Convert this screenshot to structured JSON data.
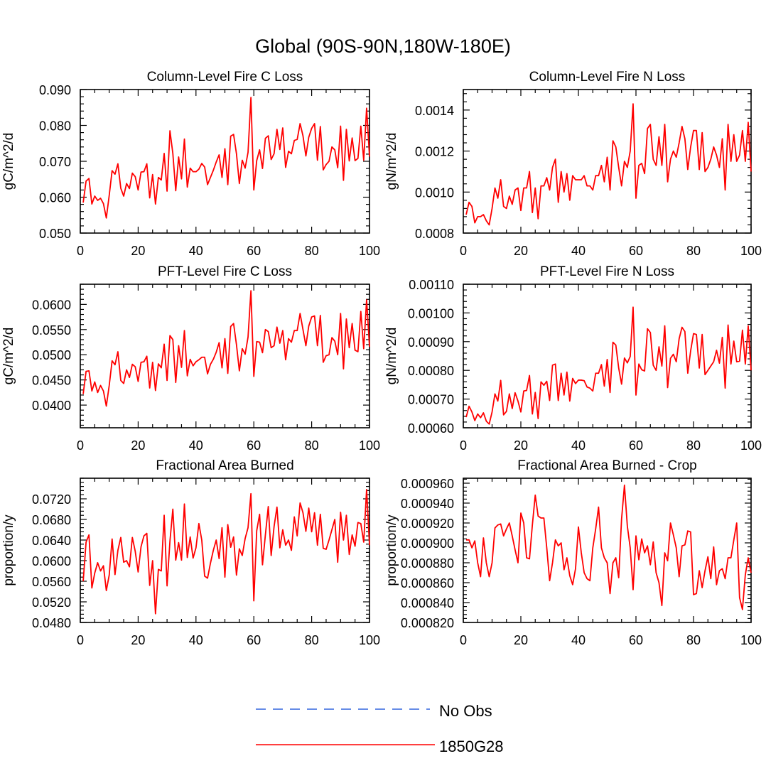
{
  "title": "Global (90S-90N,180W-180E)",
  "colors": {
    "series": "#ff0000",
    "obs": "#3366dd",
    "axes": "#000000"
  },
  "legend": {
    "entries": [
      {
        "label": "No Obs",
        "style": "dashed",
        "color": "#3366dd"
      },
      {
        "label": "1850G28",
        "style": "solid",
        "color": "#ff0000"
      }
    ]
  },
  "chart_data": [
    {
      "type": "line",
      "title": "Column-Level Fire C Loss",
      "xlabel": "",
      "ylabel": "gC/m^2/d",
      "xlim": [
        0,
        100
      ],
      "ylim": [
        0.05,
        0.09
      ],
      "xticks": [
        "0",
        "20",
        "40",
        "60",
        "80",
        "100"
      ],
      "yticks": [
        {
          "v": 0.05,
          "label": "0.050"
        },
        {
          "v": 0.06,
          "label": "0.060"
        },
        {
          "v": 0.07,
          "label": "0.070"
        },
        {
          "v": 0.08,
          "label": "0.080"
        },
        {
          "v": 0.09,
          "label": "0.090"
        }
      ],
      "series": [
        {
          "name": "1850G28",
          "x_start": 1,
          "values": [
            0.0585,
            0.0645,
            0.0652,
            0.0581,
            0.0603,
            0.0591,
            0.0597,
            0.0582,
            0.0542,
            0.0605,
            0.0674,
            0.0664,
            0.0693,
            0.0625,
            0.0603,
            0.0638,
            0.0624,
            0.0667,
            0.0657,
            0.062,
            0.067,
            0.0671,
            0.0693,
            0.0598,
            0.0663,
            0.0581,
            0.0655,
            0.0648,
            0.0722,
            0.0617,
            0.0785,
            0.0722,
            0.0618,
            0.0712,
            0.0651,
            0.0762,
            0.0628,
            0.0681,
            0.0671,
            0.0671,
            0.0678,
            0.0694,
            0.0684,
            0.0635,
            0.0655,
            0.0675,
            0.0698,
            0.0718,
            0.0655,
            0.0735,
            0.0635,
            0.077,
            0.0775,
            0.0721,
            0.0638,
            0.0703,
            0.0681,
            0.0725,
            0.0878,
            0.062,
            0.0702,
            0.0732,
            0.068,
            0.0764,
            0.0771,
            0.0705,
            0.0721,
            0.0789,
            0.0733,
            0.0793,
            0.0683,
            0.0728,
            0.0721,
            0.0758,
            0.0761,
            0.0805,
            0.0771,
            0.0715,
            0.0767,
            0.0792,
            0.0805,
            0.0703,
            0.0797,
            0.0676,
            0.0691,
            0.07,
            0.074,
            0.0732,
            0.0682,
            0.0798,
            0.0647,
            0.0789,
            0.0701,
            0.0765,
            0.0702,
            0.0708,
            0.0798,
            0.0703,
            0.0848,
            0.0713
          ]
        }
      ]
    },
    {
      "type": "line",
      "title": "Column-Level Fire N Loss",
      "xlabel": "",
      "ylabel": "gN/m^2/d",
      "xlim": [
        0,
        100
      ],
      "ylim": [
        0.0008,
        0.0015
      ],
      "xticks": [
        "0",
        "20",
        "40",
        "60",
        "80",
        "100"
      ],
      "yticks": [
        {
          "v": 0.0008,
          "label": "0.0008"
        },
        {
          "v": 0.001,
          "label": "0.0010"
        },
        {
          "v": 0.0012,
          "label": "0.0012"
        },
        {
          "v": 0.0014,
          "label": "0.0014"
        }
      ],
      "series": [
        {
          "name": "1850G28",
          "x_start": 1,
          "values": [
            0.00089,
            0.00095,
            0.00093,
            0.00085,
            0.00088,
            0.00088,
            0.00089,
            0.00086,
            0.00084,
            0.00092,
            0.00102,
            0.00097,
            0.00106,
            0.00093,
            0.00092,
            0.00098,
            0.00094,
            0.00101,
            0.00102,
            0.00091,
            0.00102,
            0.00102,
            0.0011,
            0.0009,
            0.00102,
            0.00087,
            0.00103,
            0.00103,
            0.00107,
            0.00101,
            0.00112,
            0.00116,
            0.00095,
            0.0011,
            0.001,
            0.00109,
            0.00096,
            0.00108,
            0.00106,
            0.00106,
            0.00106,
            0.00108,
            0.00103,
            0.00103,
            0.00101,
            0.00108,
            0.00108,
            0.00113,
            0.00105,
            0.00117,
            0.00101,
            0.00125,
            0.00122,
            0.00112,
            0.00103,
            0.00115,
            0.00112,
            0.0012,
            0.00143,
            0.00097,
            0.00113,
            0.00114,
            0.00109,
            0.00131,
            0.00133,
            0.00116,
            0.00113,
            0.00127,
            0.00113,
            0.00133,
            0.00105,
            0.00116,
            0.0012,
            0.00117,
            0.00124,
            0.00132,
            0.00126,
            0.00111,
            0.00122,
            0.0013,
            0.0013,
            0.00111,
            0.00129,
            0.0011,
            0.00112,
            0.00116,
            0.00122,
            0.00118,
            0.00112,
            0.00126,
            0.00101,
            0.00133,
            0.00115,
            0.00128,
            0.00115,
            0.00118,
            0.0013,
            0.00115,
            0.00134,
            0.0011
          ]
        }
      ]
    },
    {
      "type": "line",
      "title": "PFT-Level Fire C Loss",
      "xlabel": "",
      "ylabel": "gC/m^2/d",
      "xlim": [
        0,
        100
      ],
      "ylim": [
        0.0355,
        0.064
      ],
      "xticks": [
        "0",
        "20",
        "40",
        "60",
        "80",
        "100"
      ],
      "yticks": [
        {
          "v": 0.04,
          "label": "0.0400"
        },
        {
          "v": 0.045,
          "label": "0.0450"
        },
        {
          "v": 0.05,
          "label": "0.0500"
        },
        {
          "v": 0.055,
          "label": "0.0550"
        },
        {
          "v": 0.06,
          "label": "0.0600"
        }
      ],
      "series": [
        {
          "name": "1850G28",
          "x_start": 1,
          "values": [
            0.0422,
            0.0467,
            0.0468,
            0.0428,
            0.0446,
            0.0425,
            0.0439,
            0.0428,
            0.0398,
            0.0439,
            0.0488,
            0.048,
            0.0506,
            0.0449,
            0.0443,
            0.047,
            0.0455,
            0.0481,
            0.0476,
            0.0447,
            0.0485,
            0.0486,
            0.0497,
            0.0434,
            0.0485,
            0.0429,
            0.0482,
            0.0474,
            0.0521,
            0.0449,
            0.0538,
            0.053,
            0.0445,
            0.0518,
            0.0475,
            0.0548,
            0.0458,
            0.0491,
            0.0478,
            0.0486,
            0.049,
            0.0495,
            0.0495,
            0.0462,
            0.0481,
            0.0491,
            0.0505,
            0.0524,
            0.0474,
            0.0532,
            0.0463,
            0.0556,
            0.0562,
            0.052,
            0.0468,
            0.0512,
            0.0501,
            0.0535,
            0.0627,
            0.0457,
            0.0526,
            0.0525,
            0.0504,
            0.055,
            0.0546,
            0.0514,
            0.0518,
            0.0555,
            0.0523,
            0.0548,
            0.049,
            0.0532,
            0.0525,
            0.0548,
            0.0548,
            0.0582,
            0.055,
            0.0518,
            0.0557,
            0.0575,
            0.0577,
            0.0518,
            0.0578,
            0.0485,
            0.0498,
            0.05,
            0.0534,
            0.0527,
            0.05,
            0.0582,
            0.0472,
            0.0571,
            0.0514,
            0.0562,
            0.0509,
            0.0506,
            0.0586,
            0.0512,
            0.0609,
            0.0516
          ]
        }
      ]
    },
    {
      "type": "line",
      "title": "PFT-Level Fire N Loss",
      "xlabel": "",
      "ylabel": "gN/m^2/d",
      "xlim": [
        0,
        100
      ],
      "ylim": [
        0.0006,
        0.0011
      ],
      "xticks": [
        "0",
        "20",
        "40",
        "60",
        "80",
        "100"
      ],
      "yticks": [
        {
          "v": 0.0006,
          "label": "0.00060"
        },
        {
          "v": 0.0007,
          "label": "0.00070"
        },
        {
          "v": 0.0008,
          "label": "0.00080"
        },
        {
          "v": 0.0009,
          "label": "0.00090"
        },
        {
          "v": 0.001,
          "label": "0.00100"
        },
        {
          "v": 0.0011,
          "label": "0.00110"
        }
      ],
      "series": [
        {
          "name": "1850G28",
          "x_start": 1,
          "values": [
            0.000637,
            0.000675,
            0.000655,
            0.000625,
            0.000648,
            0.000635,
            0.000652,
            0.000623,
            0.000613,
            0.000655,
            0.000718,
            0.000693,
            0.000765,
            0.000645,
            0.000657,
            0.000718,
            0.000667,
            0.000722,
            0.000693,
            0.000655,
            0.000728,
            0.00073,
            0.000782,
            0.000648,
            0.000723,
            0.000632,
            0.00076,
            0.000748,
            0.000762,
            0.000695,
            0.000818,
            0.000822,
            0.000695,
            0.00079,
            0.000714,
            0.000794,
            0.000693,
            0.000772,
            0.000754,
            0.000766,
            0.000766,
            0.000764,
            0.000742,
            0.000738,
            0.000728,
            0.00079,
            0.00079,
            0.00082,
            0.000745,
            0.000838,
            0.000723,
            0.000898,
            0.000888,
            0.000808,
            0.000752,
            0.000843,
            0.000826,
            0.000848,
            0.00102,
            0.000714,
            0.000822,
            0.000802,
            0.000798,
            0.000945,
            0.000932,
            0.000818,
            0.0008,
            0.000882,
            0.000815,
            0.000955,
            0.00074,
            0.000842,
            0.000856,
            0.00083,
            0.00091,
            0.00095,
            0.000935,
            0.00079,
            0.000868,
            0.000928,
            0.000925,
            0.000808,
            0.000925,
            0.000785,
            0.0008,
            0.000815,
            0.00083,
            0.00087,
            0.000825,
            0.000915,
            0.000738,
            0.000958,
            0.000822,
            0.000902,
            0.00083,
            0.000832,
            0.00094,
            0.000822,
            0.000955,
            0.0008
          ]
        }
      ]
    },
    {
      "type": "line",
      "title": "Fractional Area Burned",
      "xlabel": "",
      "ylabel": "proportion/y",
      "xlim": [
        0,
        100
      ],
      "ylim": [
        0.048,
        0.076
      ],
      "xticks": [
        "0",
        "20",
        "40",
        "60",
        "80",
        "100"
      ],
      "yticks": [
        {
          "v": 0.048,
          "label": "0.0480"
        },
        {
          "v": 0.052,
          "label": "0.0520"
        },
        {
          "v": 0.056,
          "label": "0.0560"
        },
        {
          "v": 0.06,
          "label": "0.0600"
        },
        {
          "v": 0.064,
          "label": "0.0640"
        },
        {
          "v": 0.068,
          "label": "0.0680"
        },
        {
          "v": 0.072,
          "label": "0.0720"
        }
      ],
      "series": [
        {
          "name": "1850G28",
          "x_start": 1,
          "values": [
            0.056,
            0.0636,
            0.065,
            0.0547,
            0.0576,
            0.0596,
            0.058,
            0.059,
            0.0542,
            0.0572,
            0.0642,
            0.0573,
            0.062,
            0.0645,
            0.0597,
            0.06,
            0.0588,
            0.0645,
            0.0618,
            0.0578,
            0.0627,
            0.0648,
            0.0653,
            0.0552,
            0.06,
            0.0497,
            0.0583,
            0.058,
            0.0688,
            0.0551,
            0.0638,
            0.07,
            0.0601,
            0.0635,
            0.0601,
            0.071,
            0.0606,
            0.0646,
            0.0605,
            0.0625,
            0.0672,
            0.064,
            0.057,
            0.0566,
            0.0595,
            0.062,
            0.064,
            0.0604,
            0.0664,
            0.0568,
            0.067,
            0.0626,
            0.0646,
            0.0572,
            0.0623,
            0.061,
            0.0643,
            0.0664,
            0.073,
            0.0522,
            0.0658,
            0.069,
            0.0592,
            0.065,
            0.0705,
            0.061,
            0.0666,
            0.0704,
            0.0625,
            0.066,
            0.063,
            0.064,
            0.062,
            0.0685,
            0.0648,
            0.0712,
            0.0693,
            0.0657,
            0.0702,
            0.0656,
            0.0693,
            0.063,
            0.069,
            0.0624,
            0.0622,
            0.064,
            0.066,
            0.068,
            0.0597,
            0.0694,
            0.064,
            0.0688,
            0.0612,
            0.065,
            0.0628,
            0.0674,
            0.0672,
            0.0636,
            0.0738,
            0.063
          ]
        }
      ]
    },
    {
      "type": "line",
      "title": "Fractional Area Burned - Crop",
      "xlabel": "",
      "ylabel": "proportion/y",
      "xlim": [
        0,
        100
      ],
      "ylim": [
        0.00082,
        0.000965
      ],
      "xticks": [
        "0",
        "20",
        "40",
        "60",
        "80",
        "100"
      ],
      "yticks": [
        {
          "v": 0.00082,
          "label": "0.000820"
        },
        {
          "v": 0.00084,
          "label": "0.000840"
        },
        {
          "v": 0.00086,
          "label": "0.000860"
        },
        {
          "v": 0.00088,
          "label": "0.000880"
        },
        {
          "v": 0.0009,
          "label": "0.000900"
        },
        {
          "v": 0.00092,
          "label": "0.000920"
        },
        {
          "v": 0.00094,
          "label": "0.000940"
        },
        {
          "v": 0.00096,
          "label": "0.000960"
        }
      ],
      "series": [
        {
          "name": "1850G28",
          "x_start": 1,
          "values": [
            0.000903,
            0.000903,
            0.000895,
            0.000902,
            0.00088,
            0.000866,
            0.000905,
            0.00088,
            0.000866,
            0.00088,
            0.000915,
            0.000918,
            0.000919,
            0.000907,
            0.000914,
            0.00092,
            0.000907,
            0.000893,
            0.00088,
            0.00093,
            0.00092,
            0.000885,
            0.000884,
            0.000918,
            0.000948,
            0.000927,
            0.000925,
            0.000925,
            0.000895,
            0.000862,
            0.00088,
            0.000903,
            0.000897,
            0.0009,
            0.000873,
            0.000885,
            0.000867,
            0.000858,
            0.000874,
            0.000916,
            0.00089,
            0.00087,
            0.000864,
            0.000862,
            0.000895,
            0.000914,
            0.000936,
            0.000895,
            0.000885,
            0.00088,
            0.000849,
            0.00088,
            0.000885,
            0.000865,
            0.000924,
            0.000958,
            0.000917,
            0.000895,
            0.000853,
            0.000907,
            0.000883,
            0.000904,
            0.00089,
            0.000897,
            0.000878,
            0.000901,
            0.00087,
            0.00086,
            0.000837,
            0.00089,
            0.000882,
            0.00092,
            0.000908,
            0.000895,
            0.000866,
            0.000897,
            0.000898,
            0.000912,
            0.000911,
            0.000848,
            0.000849,
            0.000872,
            0.000855,
            0.000872,
            0.000886,
            0.000864,
            0.000896,
            0.000858,
            0.000872,
            0.000874,
            0.000864,
            0.000885,
            0.000885,
            0.000903,
            0.00092,
            0.000845,
            0.000833,
            0.000868,
            0.000885,
            0.00087
          ]
        }
      ]
    }
  ]
}
